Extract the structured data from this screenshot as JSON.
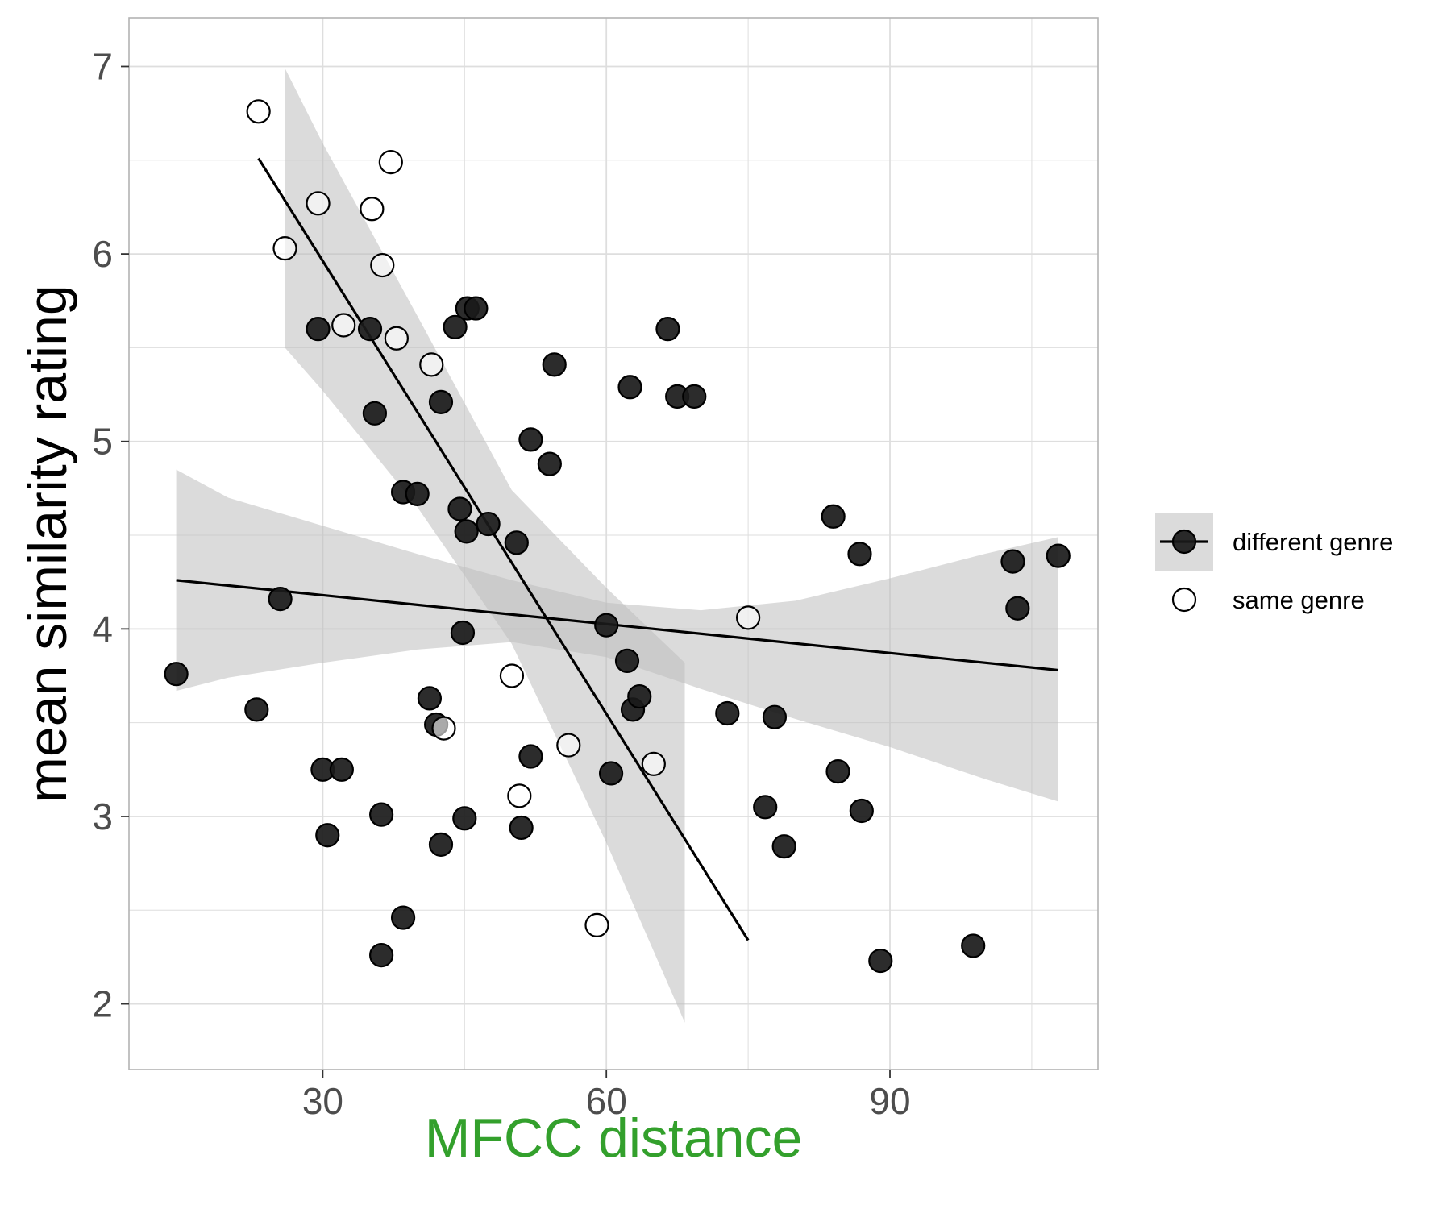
{
  "chart_data": {
    "type": "scatter",
    "xlabel": "MFCC distance",
    "ylabel": "mean similarity rating",
    "xlim": [
      9.5,
      112
    ],
    "ylim": [
      1.65,
      7.26
    ],
    "x_ticks": [
      30,
      60,
      90
    ],
    "y_ticks": [
      2,
      3,
      4,
      5,
      6,
      7
    ],
    "grid": true,
    "legend_position": "right",
    "colors": {
      "point_fill": "#1a1a1a",
      "ribbon": "#bdbdbd",
      "line": "#000000",
      "xlabel": "#33a02c",
      "ylabel": "#000000",
      "grid": "#dedede",
      "panel_border": "#b3b3b3"
    },
    "series": [
      {
        "name": "different genre",
        "marker": "filled",
        "points": [
          [
            14.5,
            3.76
          ],
          [
            23,
            3.57
          ],
          [
            25.5,
            4.16
          ],
          [
            29.5,
            5.6
          ],
          [
            30,
            3.25
          ],
          [
            30.5,
            2.9
          ],
          [
            32,
            3.25
          ],
          [
            35,
            5.6
          ],
          [
            35.5,
            5.15
          ],
          [
            36.2,
            3.01
          ],
          [
            36.2,
            2.26
          ],
          [
            38.5,
            4.73
          ],
          [
            38.5,
            2.46
          ],
          [
            40,
            4.72
          ],
          [
            41.3,
            3.63
          ],
          [
            42,
            3.49
          ],
          [
            42.5,
            5.21
          ],
          [
            42.5,
            2.85
          ],
          [
            44,
            5.61
          ],
          [
            44.5,
            4.64
          ],
          [
            44.8,
            3.98
          ],
          [
            45,
            2.99
          ],
          [
            45.2,
            4.52
          ],
          [
            45.3,
            5.71
          ],
          [
            46.2,
            5.71
          ],
          [
            47.5,
            4.56
          ],
          [
            50.5,
            4.46
          ],
          [
            51,
            2.94
          ],
          [
            52,
            5.01
          ],
          [
            52,
            3.32
          ],
          [
            54,
            4.88
          ],
          [
            54.5,
            5.41
          ],
          [
            60,
            4.02
          ],
          [
            60.5,
            3.23
          ],
          [
            62.2,
            3.83
          ],
          [
            62.5,
            5.29
          ],
          [
            62.8,
            3.57
          ],
          [
            63.5,
            3.64
          ],
          [
            66.5,
            5.6
          ],
          [
            67.5,
            5.24
          ],
          [
            69.3,
            5.24
          ],
          [
            72.8,
            3.55
          ],
          [
            76.8,
            3.05
          ],
          [
            77.8,
            3.53
          ],
          [
            78.8,
            2.84
          ],
          [
            84,
            4.6
          ],
          [
            84.5,
            3.24
          ],
          [
            86.8,
            4.4
          ],
          [
            87,
            3.03
          ],
          [
            89,
            2.23
          ],
          [
            98.8,
            2.31
          ],
          [
            103,
            4.36
          ],
          [
            103.5,
            4.11
          ],
          [
            107.8,
            4.39
          ]
        ],
        "fit": {
          "x": [
            14.5,
            107.8
          ],
          "y": [
            4.26,
            3.78
          ]
        },
        "ribbon": {
          "x": [
            14.5,
            20,
            30,
            40,
            50,
            60,
            70,
            80,
            90,
            100,
            107.8
          ],
          "lo": [
            3.67,
            3.74,
            3.82,
            3.89,
            3.93,
            3.85,
            3.68,
            3.52,
            3.37,
            3.2,
            3.08
          ],
          "hi": [
            4.85,
            4.7,
            4.55,
            4.4,
            4.26,
            4.14,
            4.1,
            4.15,
            4.27,
            4.4,
            4.49
          ]
        }
      },
      {
        "name": "same genre",
        "marker": "open",
        "points": [
          [
            23.2,
            6.76
          ],
          [
            26,
            6.03
          ],
          [
            29.5,
            6.27
          ],
          [
            32.2,
            5.62
          ],
          [
            35.2,
            6.24
          ],
          [
            36.3,
            5.94
          ],
          [
            37.2,
            6.49
          ],
          [
            37.8,
            5.55
          ],
          [
            41.5,
            5.41
          ],
          [
            42.8,
            3.47
          ],
          [
            50,
            3.75
          ],
          [
            50.8,
            3.11
          ],
          [
            56,
            3.38
          ],
          [
            59,
            2.42
          ],
          [
            65,
            3.28
          ],
          [
            75,
            4.06
          ]
        ],
        "fit": {
          "x": [
            23.2,
            75
          ],
          "y": [
            6.51,
            2.34
          ]
        },
        "ribbon": {
          "x": [
            26,
            30,
            40,
            50,
            60,
            68.3
          ],
          "lo": [
            5.5,
            5.27,
            4.65,
            3.92,
            2.86,
            1.9
          ],
          "hi": [
            6.99,
            6.59,
            5.67,
            4.74,
            4.22,
            3.82
          ]
        }
      }
    ]
  }
}
